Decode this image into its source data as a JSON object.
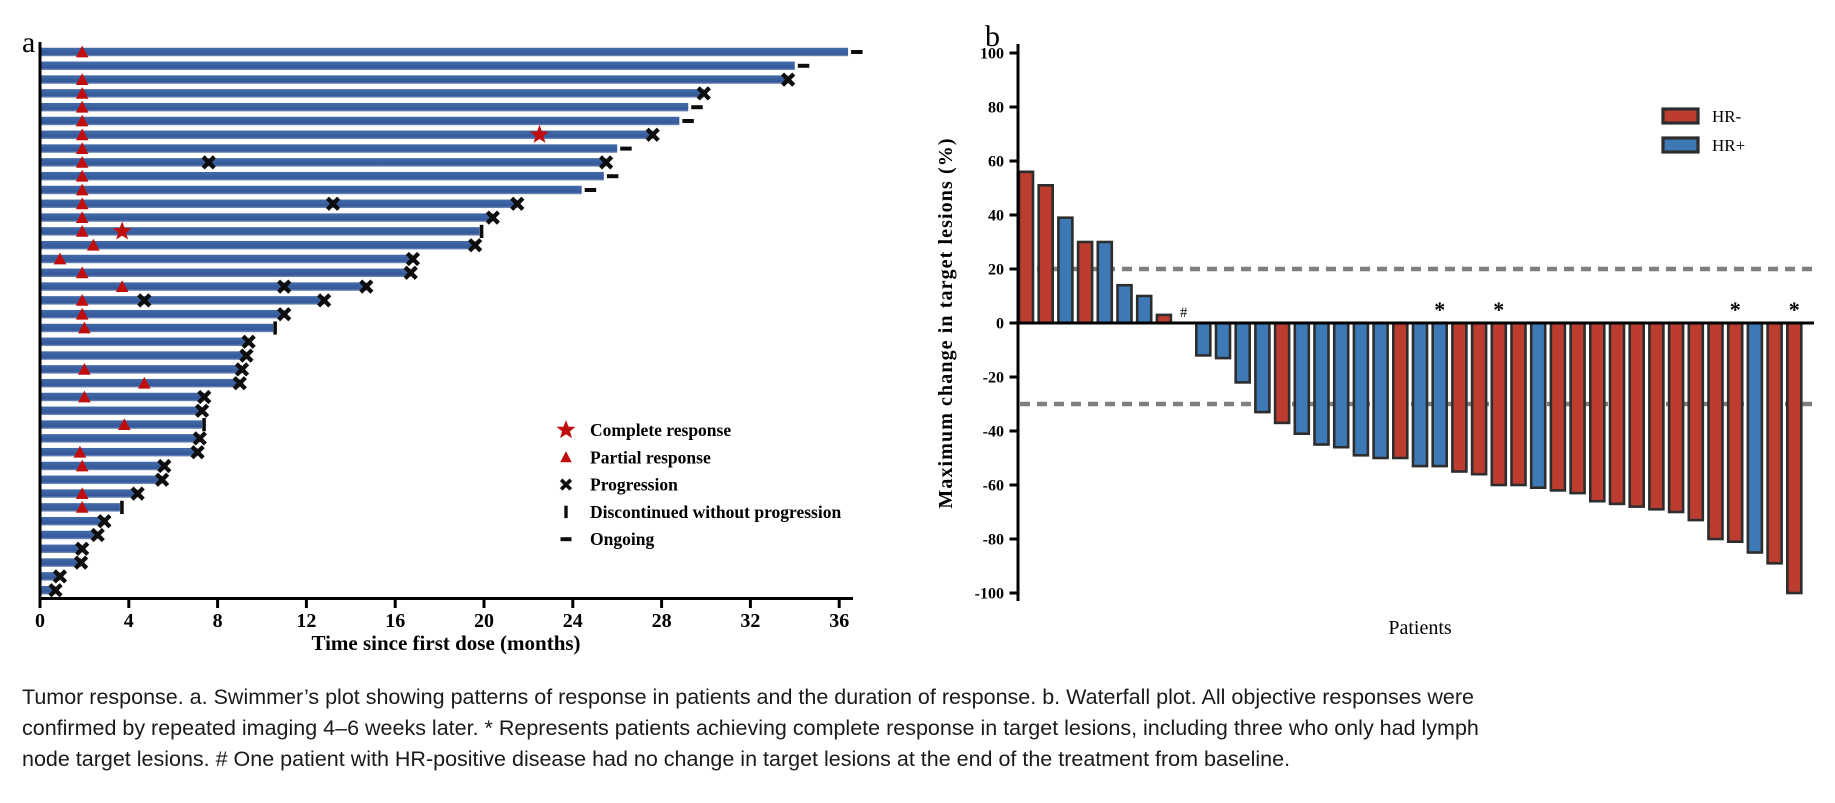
{
  "figure": {
    "panel_a_label": "a",
    "panel_b_label": "b",
    "caption_lines": [
      "Tumor response. a. Swimmer’s plot showing patterns of response in patients and the duration of response. b. Waterfall plot. All objective responses were",
      "confirmed by repeated imaging 4–6 weeks later. * Represents patients achieving complete response in target lesions, including three who only had lymph",
      "node target lesions. # One patient with HR-positive disease had no change in target lesions at the end of the treatment from baseline."
    ]
  },
  "colors": {
    "swimmer_bar": "#3a5fa0",
    "swimmer_bar_top": "#426aa8",
    "swimmer_bar_bottom": "#7b94bd",
    "response_marker_red": "#c00d0d",
    "event_marker_black": "#0d0d0d",
    "hr_negative": "#bd3c30",
    "hr_positive": "#3d7ab5",
    "bar_outline": "#2d2d2d",
    "reference_line_gray": "#7f7f7f"
  },
  "chart_data": [
    {
      "id": "swimmer_plot",
      "type": "bar",
      "orientation": "horizontal",
      "xlabel": "Time since first dose (months)",
      "xlim": [
        0,
        37
      ],
      "xticks": [
        0,
        4,
        8,
        12,
        16,
        20,
        24,
        28,
        32,
        36
      ],
      "grid": false,
      "legend_position": "inside-lower-right",
      "legend": [
        {
          "symbol": "star",
          "label": "Complete response"
        },
        {
          "symbol": "triangle",
          "label": "Partial response"
        },
        {
          "symbol": "cross",
          "label": "Progression"
        },
        {
          "symbol": "vbar",
          "label": "Discontinued without progression"
        },
        {
          "symbol": "dash",
          "label": "Ongoing"
        }
      ],
      "patients": [
        {
          "duration": 36.4,
          "partial_response": 1.9,
          "end_event": "ongoing"
        },
        {
          "duration": 34.0,
          "end_event": "ongoing"
        },
        {
          "duration": 33.7,
          "partial_response": 1.9,
          "end_event": "progression"
        },
        {
          "duration": 29.9,
          "partial_response": 1.9,
          "end_event": "progression"
        },
        {
          "duration": 29.2,
          "partial_response": 1.9,
          "end_event": "ongoing"
        },
        {
          "duration": 28.8,
          "partial_response": 1.9,
          "end_event": "ongoing"
        },
        {
          "duration": 27.6,
          "partial_response": 1.9,
          "complete_response": 22.5,
          "end_event": "progression"
        },
        {
          "duration": 26.0,
          "partial_response": 1.9,
          "end_event": "ongoing"
        },
        {
          "duration": 25.5,
          "partial_response": 1.9,
          "progression_marks": [
            7.6
          ],
          "end_event": "progression"
        },
        {
          "duration": 25.4,
          "partial_response": 1.9,
          "end_event": "ongoing"
        },
        {
          "duration": 24.4,
          "partial_response": 1.9,
          "end_event": "ongoing"
        },
        {
          "duration": 21.5,
          "partial_response": 1.9,
          "progression_marks": [
            13.2
          ],
          "end_event": "progression"
        },
        {
          "duration": 20.4,
          "partial_response": 1.9,
          "end_event": "progression"
        },
        {
          "duration": 19.8,
          "partial_response": 1.9,
          "complete_response": 3.7,
          "end_event": "discontinued"
        },
        {
          "duration": 19.6,
          "partial_response": 2.4,
          "end_event": "progression"
        },
        {
          "duration": 16.8,
          "partial_response": 0.9,
          "end_event": "progression"
        },
        {
          "duration": 16.7,
          "partial_response": 1.9,
          "end_event": "progression"
        },
        {
          "duration": 14.7,
          "partial_response": 3.7,
          "progression_marks": [
            11.0
          ],
          "end_event": "progression"
        },
        {
          "duration": 12.8,
          "partial_response": 1.9,
          "progression_marks": [
            4.7
          ],
          "end_event": "progression"
        },
        {
          "duration": 11.0,
          "partial_response": 1.9,
          "end_event": "progression"
        },
        {
          "duration": 10.5,
          "partial_response": 2.0,
          "end_event": "discontinued"
        },
        {
          "duration": 9.4,
          "end_event": "progression"
        },
        {
          "duration": 9.3,
          "end_event": "progression"
        },
        {
          "duration": 9.1,
          "partial_response": 2.0,
          "end_event": "progression"
        },
        {
          "duration": 9.0,
          "partial_response": 4.7,
          "end_event": "progression"
        },
        {
          "duration": 7.4,
          "partial_response": 2.0,
          "end_event": "progression"
        },
        {
          "duration": 7.3,
          "end_event": "progression"
        },
        {
          "duration": 7.3,
          "partial_response": 3.8,
          "end_event": "discontinued"
        },
        {
          "duration": 7.2,
          "end_event": "progression"
        },
        {
          "duration": 7.1,
          "partial_response": 1.8,
          "end_event": "progression"
        },
        {
          "duration": 5.6,
          "partial_response": 1.9,
          "end_event": "progression"
        },
        {
          "duration": 5.5,
          "end_event": "progression"
        },
        {
          "duration": 4.4,
          "partial_response": 1.9,
          "end_event": "progression"
        },
        {
          "duration": 3.6,
          "partial_response": 1.9,
          "end_event": "discontinued"
        },
        {
          "duration": 2.9,
          "end_event": "progression"
        },
        {
          "duration": 2.6,
          "end_event": "progression"
        },
        {
          "duration": 1.9,
          "end_event": "progression"
        },
        {
          "duration": 1.85,
          "end_event": "progression"
        },
        {
          "duration": 0.9,
          "end_event": "progression"
        },
        {
          "duration": 0.7,
          "end_event": "progression"
        }
      ]
    },
    {
      "id": "waterfall_plot",
      "type": "bar",
      "xlabel": "Patients",
      "ylabel": "Maximum change in target lesions (%)",
      "ylim": [
        -100,
        100
      ],
      "yticks": [
        100,
        80,
        60,
        40,
        20,
        0,
        -20,
        -40,
        -60,
        -80,
        -100
      ],
      "reference_lines": [
        20,
        -30
      ],
      "legend_position": "upper-right-inside",
      "legend": [
        {
          "label": "HR-",
          "group": "HR-"
        },
        {
          "label": "HR+",
          "group": "HR+"
        }
      ],
      "bars": [
        {
          "value": 56,
          "group": "HR-"
        },
        {
          "value": 51,
          "group": "HR-"
        },
        {
          "value": 39,
          "group": "HR+"
        },
        {
          "value": 30,
          "group": "HR-"
        },
        {
          "value": 30,
          "group": "HR+"
        },
        {
          "value": 14,
          "group": "HR+"
        },
        {
          "value": 10,
          "group": "HR+"
        },
        {
          "value": 3,
          "group": "HR-"
        },
        {
          "value": 0,
          "group": "HR+",
          "annotation": "#"
        },
        {
          "value": -12,
          "group": "HR+"
        },
        {
          "value": -13,
          "group": "HR+"
        },
        {
          "value": -22,
          "group": "HR+"
        },
        {
          "value": -33,
          "group": "HR+"
        },
        {
          "value": -37,
          "group": "HR-"
        },
        {
          "value": -41,
          "group": "HR+"
        },
        {
          "value": -45,
          "group": "HR+"
        },
        {
          "value": -46,
          "group": "HR+"
        },
        {
          "value": -49,
          "group": "HR+"
        },
        {
          "value": -50,
          "group": "HR+"
        },
        {
          "value": -50,
          "group": "HR-"
        },
        {
          "value": -53,
          "group": "HR+"
        },
        {
          "value": -53,
          "group": "HR+",
          "annotation": "*"
        },
        {
          "value": -55,
          "group": "HR-"
        },
        {
          "value": -56,
          "group": "HR-"
        },
        {
          "value": -60,
          "group": "HR-",
          "annotation": "*"
        },
        {
          "value": -60,
          "group": "HR-"
        },
        {
          "value": -61,
          "group": "HR+"
        },
        {
          "value": -62,
          "group": "HR-"
        },
        {
          "value": -63,
          "group": "HR-"
        },
        {
          "value": -66,
          "group": "HR-"
        },
        {
          "value": -67,
          "group": "HR-"
        },
        {
          "value": -68,
          "group": "HR-"
        },
        {
          "value": -69,
          "group": "HR-"
        },
        {
          "value": -70,
          "group": "HR-"
        },
        {
          "value": -73,
          "group": "HR-"
        },
        {
          "value": -80,
          "group": "HR-"
        },
        {
          "value": -81,
          "group": "HR-",
          "annotation": "*"
        },
        {
          "value": -85,
          "group": "HR+"
        },
        {
          "value": -89,
          "group": "HR-"
        },
        {
          "value": -100,
          "group": "HR-",
          "annotation": "*"
        }
      ]
    }
  ]
}
